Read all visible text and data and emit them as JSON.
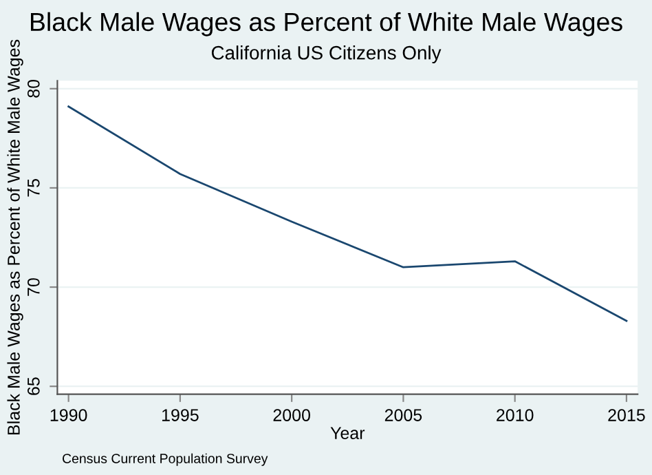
{
  "chart_data": {
    "type": "line",
    "title": "Black Male Wages as Percent of White Male Wages",
    "subtitle": "California US Citizens Only",
    "xlabel": "Year",
    "ylabel": "Black Male Wages as Percent of White Male Wages",
    "annotations": [
      "Census Current Population Survey"
    ],
    "x": [
      1990,
      1995,
      2000,
      2005,
      2010,
      2015
    ],
    "series": [
      {
        "color": "#1a476f",
        "values": [
          79.1,
          75.7,
          73.3,
          71.0,
          71.3,
          68.3
        ]
      }
    ],
    "xlim": [
      1989.5,
      2015.5
    ],
    "xticks": [
      1990,
      1995,
      2000,
      2005,
      2010,
      2015
    ],
    "ylim": [
      64.6,
      80.4
    ],
    "yticks": [
      65,
      70,
      75,
      80
    ],
    "grid": "y",
    "legend": false,
    "marker": "none",
    "line_style": "solid"
  }
}
